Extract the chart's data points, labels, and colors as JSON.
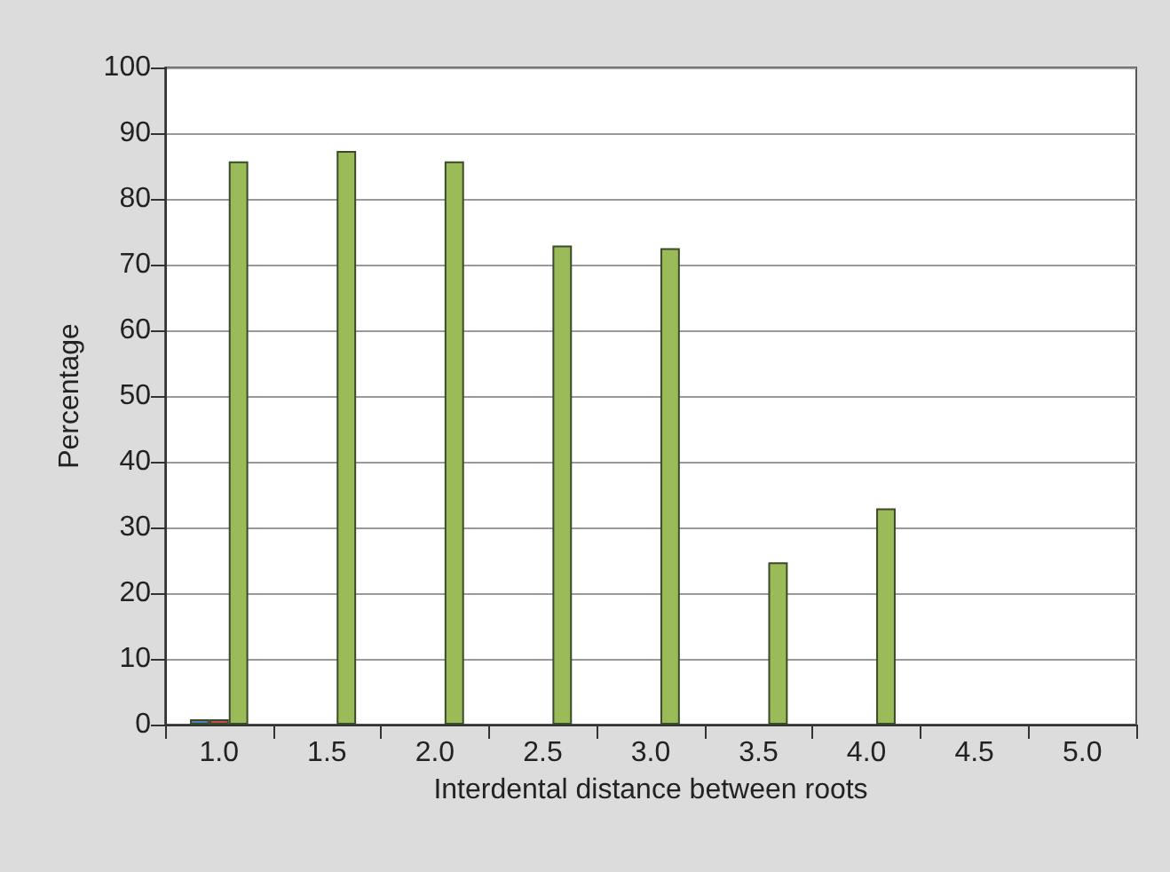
{
  "chart_data": {
    "type": "bar",
    "xlabel": "Interdental distance between roots",
    "ylabel": "Percentage",
    "categories": [
      "1.0",
      "1.5",
      "2.0",
      "2.5",
      "3.0",
      "3.5",
      "4.0",
      "4.5",
      "5.0"
    ],
    "series": [
      {
        "color": "#4f81bd",
        "values": [
          0.8,
          null,
          null,
          null,
          null,
          null,
          null,
          null,
          null
        ]
      },
      {
        "color": "#c0504d",
        "values": [
          0.8,
          null,
          null,
          null,
          null,
          null,
          null,
          null,
          null
        ]
      },
      {
        "color": "#9bbb59",
        "values": [
          85.7,
          87.3,
          85.7,
          72.9,
          72.5,
          24.7,
          32.9,
          null,
          null
        ]
      }
    ],
    "ylim": [
      0,
      100
    ],
    "yticks": [
      0,
      10,
      20,
      30,
      40,
      50,
      60,
      70,
      80,
      90,
      100
    ],
    "grid": "y"
  }
}
